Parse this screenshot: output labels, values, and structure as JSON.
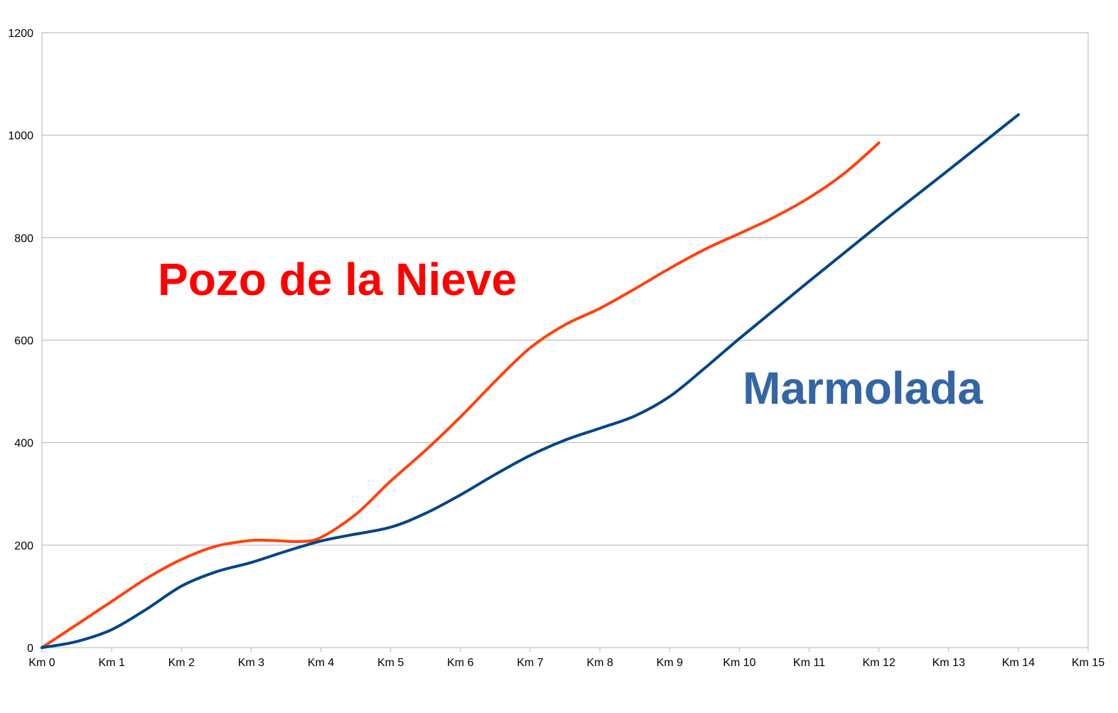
{
  "chart_data": {
    "type": "line",
    "x_categories": [
      "Km 0",
      "Km 1",
      "Km 2",
      "Km 3",
      "Km 4",
      "Km 5",
      "Km 6",
      "Km 7",
      "Km 8",
      "Km 9",
      "Km 10",
      "Km 11",
      "Km 12",
      "Km 13",
      "Km 14",
      "Km 15"
    ],
    "xlim": [
      0,
      15
    ],
    "ylim": [
      0,
      1200
    ],
    "y_ticks": [
      0,
      200,
      400,
      600,
      800,
      1000,
      1200
    ],
    "grid": "horizontal",
    "series": [
      {
        "name": "Pozo de la Nieve",
        "color": "#ff420e",
        "points": [
          [
            0,
            0
          ],
          [
            0.5,
            45
          ],
          [
            1,
            90
          ],
          [
            1.5,
            135
          ],
          [
            2,
            172
          ],
          [
            2.5,
            198
          ],
          [
            3,
            209
          ],
          [
            3.3,
            209
          ],
          [
            3.7,
            207
          ],
          [
            4,
            215
          ],
          [
            4.5,
            260
          ],
          [
            5,
            325
          ],
          [
            5.5,
            385
          ],
          [
            6,
            450
          ],
          [
            6.5,
            520
          ],
          [
            7,
            585
          ],
          [
            7.5,
            630
          ],
          [
            8,
            662
          ],
          [
            8.5,
            700
          ],
          [
            9,
            740
          ],
          [
            9.5,
            777
          ],
          [
            10,
            808
          ],
          [
            10.5,
            840
          ],
          [
            11,
            878
          ],
          [
            11.5,
            925
          ],
          [
            12,
            985
          ]
        ]
      },
      {
        "name": "Marmolada",
        "color": "#004586",
        "points": [
          [
            0,
            0
          ],
          [
            0.5,
            12
          ],
          [
            1,
            35
          ],
          [
            1.5,
            75
          ],
          [
            2,
            120
          ],
          [
            2.5,
            148
          ],
          [
            3,
            166
          ],
          [
            3.5,
            188
          ],
          [
            4,
            208
          ],
          [
            4.4,
            219
          ],
          [
            5,
            235
          ],
          [
            5.5,
            262
          ],
          [
            6,
            298
          ],
          [
            6.5,
            338
          ],
          [
            7,
            375
          ],
          [
            7.5,
            405
          ],
          [
            8,
            428
          ],
          [
            8.5,
            452
          ],
          [
            9,
            490
          ],
          [
            9.5,
            545
          ],
          [
            10,
            603
          ],
          [
            11,
            715
          ],
          [
            12,
            825
          ],
          [
            13,
            932
          ],
          [
            14,
            1040
          ]
        ]
      }
    ],
    "annotations": [
      {
        "text": "Pozo de la Nieve",
        "color": "#ff0000"
      },
      {
        "text": "Marmolada",
        "color": "#3465a4"
      }
    ]
  }
}
